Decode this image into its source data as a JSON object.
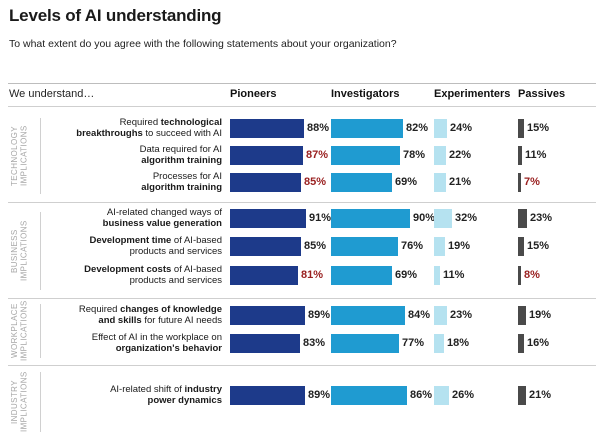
{
  "title": "Levels of AI understanding",
  "subtitle": "To what extent do you agree with the following statements about your organization?",
  "lead": "We understand…",
  "colors": {
    "Pioneers": "#1d3a8a",
    "Investigators": "#1f9bd1",
    "Experimenters": "#b5e2f0",
    "Passives": "#4a4a4a",
    "highlight": "#9a2121"
  },
  "groups": [
    {
      "name": "TECHNOLOGY\nIMPLICATIONS"
    },
    {
      "name": "BUSINESS\nIMPLICATIONS"
    },
    {
      "name": "WORKPLACE\nIMPLICATIONS"
    },
    {
      "name": "INDUSTRY\nIMPLICATIONS"
    }
  ],
  "chart_data": {
    "type": "bar",
    "title": "Levels of AI understanding",
    "subtitle": "To what extent do you agree with the following statements about your organization?",
    "unit": "%",
    "xlim": [
      0,
      100
    ],
    "series_names": [
      "Pioneers",
      "Investigators",
      "Experimenters",
      "Passives"
    ],
    "rows": [
      {
        "group": 0,
        "parts": [
          [
            "Required ",
            false
          ],
          [
            "technological",
            true
          ],
          [
            "\n",
            false
          ],
          [
            "breakthroughs",
            true
          ],
          [
            " to succeed with AI",
            false
          ]
        ],
        "values": [
          88,
          82,
          24,
          15
        ],
        "highlight": [
          false,
          false,
          false,
          false
        ]
      },
      {
        "group": 0,
        "parts": [
          [
            "Data required for AI",
            false
          ],
          [
            "\n",
            false
          ],
          [
            "algorithm training",
            true
          ]
        ],
        "values": [
          87,
          78,
          22,
          11
        ],
        "highlight": [
          true,
          false,
          false,
          false
        ]
      },
      {
        "group": 0,
        "parts": [
          [
            "Processes for AI",
            false
          ],
          [
            "\n",
            false
          ],
          [
            "algorithm training",
            true
          ]
        ],
        "values": [
          85,
          69,
          21,
          7
        ],
        "highlight": [
          true,
          false,
          false,
          true
        ]
      },
      {
        "group": 1,
        "parts": [
          [
            "AI-related changed ways of",
            false
          ],
          [
            "\n",
            false
          ],
          [
            "business value generation",
            true
          ]
        ],
        "values": [
          91,
          90,
          32,
          23
        ],
        "highlight": [
          false,
          false,
          false,
          false
        ]
      },
      {
        "group": 1,
        "parts": [
          [
            "Development time",
            true
          ],
          [
            " of AI-based",
            false
          ],
          [
            "\n",
            false
          ],
          [
            "products and services",
            false
          ]
        ],
        "values": [
          85,
          76,
          19,
          15
        ],
        "highlight": [
          false,
          false,
          false,
          false
        ]
      },
      {
        "group": 1,
        "parts": [
          [
            "Development costs",
            true
          ],
          [
            " of AI-based",
            false
          ],
          [
            "\n",
            false
          ],
          [
            "products and services",
            false
          ]
        ],
        "values": [
          81,
          69,
          11,
          8
        ],
        "highlight": [
          true,
          false,
          false,
          true
        ]
      },
      {
        "group": 2,
        "parts": [
          [
            "Required ",
            false
          ],
          [
            "changes of knowledge",
            true
          ],
          [
            "\n",
            false
          ],
          [
            "and skills",
            true
          ],
          [
            " for future AI needs",
            false
          ]
        ],
        "values": [
          89,
          84,
          23,
          19
        ],
        "highlight": [
          false,
          false,
          false,
          false
        ]
      },
      {
        "group": 2,
        "parts": [
          [
            "Effect of AI in the workplace on",
            false
          ],
          [
            "\n",
            false
          ],
          [
            "organization's behavior",
            true
          ]
        ],
        "values": [
          83,
          77,
          18,
          16
        ],
        "highlight": [
          false,
          false,
          false,
          false
        ]
      },
      {
        "group": 3,
        "parts": [
          [
            "AI-related shift of ",
            false
          ],
          [
            "industry",
            true
          ],
          [
            "\n",
            false
          ],
          [
            "power dynamics",
            true
          ]
        ],
        "values": [
          89,
          86,
          26,
          21
        ],
        "highlight": [
          false,
          false,
          false,
          false
        ]
      }
    ]
  }
}
